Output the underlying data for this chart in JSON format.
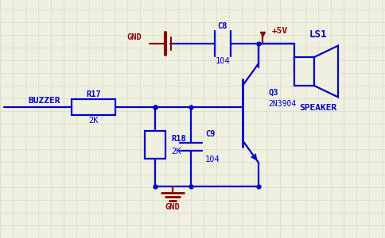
{
  "bg_color": "#f0f0e0",
  "grid_color": "#d8d8c8",
  "blue": "#0000cc",
  "dark_red": "#8b0000",
  "black": "#000000",
  "lw": 1.6,
  "figw": 4.84,
  "figh": 3.0,
  "dpi": 100,
  "xlim": [
    0,
    484
  ],
  "ylim": [
    0,
    300
  ],
  "grid_step": 16,
  "buzzer_label": "BUZZER",
  "r17_label": "R17",
  "r17_sub": "2K",
  "r18_label": "R18",
  "r18_sub": "2K",
  "c8_label": "C8",
  "c8_sub": "104",
  "c9_label": "C9",
  "c9_sub": "104",
  "q3_label": "Q3",
  "q3_sub": "2N3904",
  "ls1_label": "LS1",
  "ls1_sub": "SPEAKER",
  "gnd_label": "GND",
  "plus5v_label": "+5V"
}
